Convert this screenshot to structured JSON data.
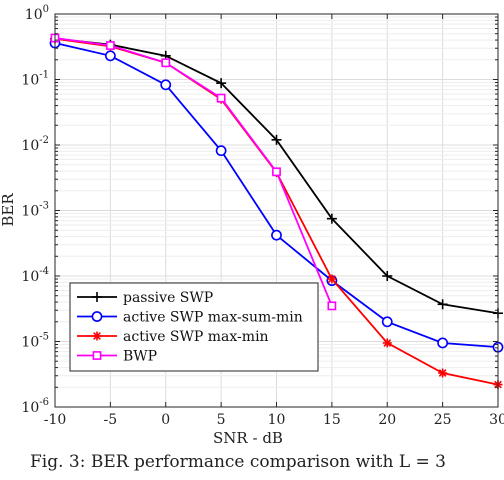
{
  "chart_data": {
    "type": "line",
    "xlabel": "SNR - dB",
    "ylabel": "BER",
    "y_scale": "log",
    "xlim": [
      -10,
      30
    ],
    "ylim": [
      1e-06,
      1
    ],
    "xticks": [
      -10,
      -5,
      0,
      5,
      10,
      15,
      20,
      25,
      30
    ],
    "xtick_labels": [
      "-10",
      "-5",
      "0",
      "5",
      "10",
      "15",
      "20",
      "25",
      "30"
    ],
    "yticks": [
      {
        "value": 1,
        "base": "10",
        "exp": "0"
      },
      {
        "value": 0.1,
        "base": "10",
        "exp": "-1"
      },
      {
        "value": 0.01,
        "base": "10",
        "exp": "-2"
      },
      {
        "value": 0.001,
        "base": "10",
        "exp": "-3"
      },
      {
        "value": 0.0001,
        "base": "10",
        "exp": "-4"
      },
      {
        "value": 1e-05,
        "base": "10",
        "exp": "-5"
      },
      {
        "value": 1e-06,
        "base": "10",
        "exp": "-6"
      }
    ],
    "grid": true,
    "legend_position": "bottom-left",
    "series": [
      {
        "name": "passive SWP",
        "color": "#000000",
        "marker": "plus",
        "x": [
          -10,
          -5,
          0,
          5,
          10,
          15,
          20,
          25,
          30
        ],
        "y": [
          0.42,
          0.34,
          0.23,
          0.088,
          0.012,
          0.00075,
          0.0001,
          3.7e-05,
          2.7e-05
        ]
      },
      {
        "name": "active SWP max-sum-min",
        "color": "#0000ff",
        "marker": "circle",
        "x": [
          -10,
          -5,
          0,
          5,
          10,
          15,
          20,
          25,
          30
        ],
        "y": [
          0.36,
          0.23,
          0.083,
          0.0082,
          0.00042,
          8.5e-05,
          2e-05,
          9.5e-06,
          8.2e-06
        ]
      },
      {
        "name": "active SWP max-min",
        "color": "#ff0000",
        "marker": "asterisk",
        "x": [
          -10,
          -5,
          0,
          5,
          10,
          15,
          20,
          25,
          30
        ],
        "y": [
          0.42,
          0.32,
          0.18,
          0.05,
          0.0038,
          9e-05,
          9.5e-06,
          3.3e-06,
          2.2e-06
        ]
      },
      {
        "name": "BWP",
        "color": "#ff00ff",
        "marker": "square",
        "x": [
          -10,
          -5,
          0,
          5,
          10,
          15
        ],
        "y": [
          0.43,
          0.33,
          0.18,
          0.052,
          0.0039,
          3.5e-05
        ]
      }
    ]
  },
  "caption": "Fig. 3: BER performance comparison with L = 3"
}
